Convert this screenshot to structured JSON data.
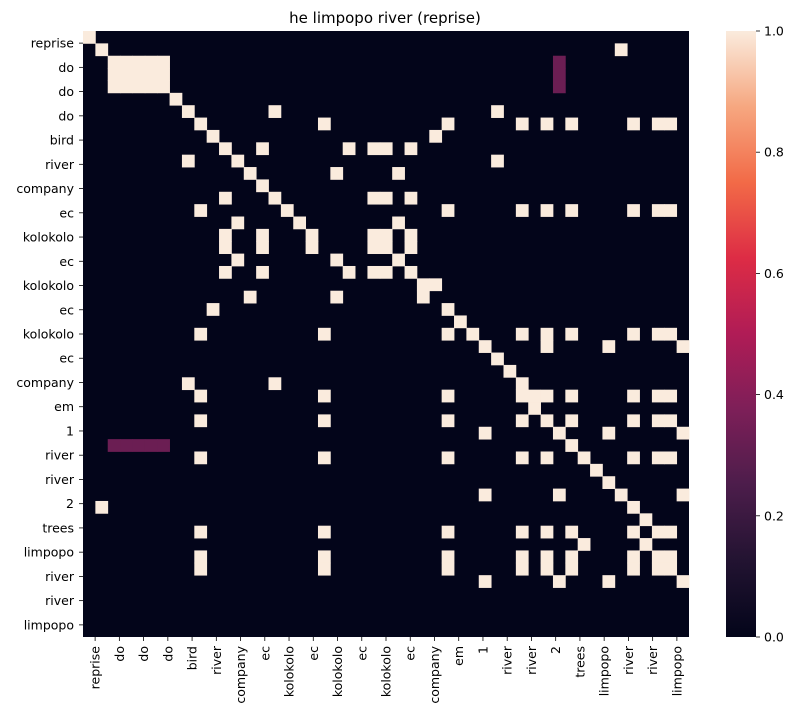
{
  "chart_data": {
    "type": "heatmap",
    "title": "he limpopo river (reprise)",
    "labels": [
      "reprise",
      "do",
      "do",
      "do",
      "bird",
      "river",
      "company",
      "ec",
      "kolokolo",
      "ec",
      "kolokolo",
      "ec",
      "kolokolo",
      "ec",
      "company",
      "em",
      "1",
      "river",
      "river",
      "2",
      "trees",
      "limpopo",
      "river",
      "river",
      "limpopo"
    ],
    "tick_labels": [
      "reprise",
      "do",
      "do",
      "do",
      "bird",
      "river",
      "company",
      "ec",
      "kolokolo",
      "ec",
      "kolokolo",
      "ec",
      "kolokolo",
      "ec",
      "company",
      "em",
      "1",
      "river",
      "river",
      "2",
      "trees",
      "limpopo",
      "river",
      "river",
      "limpopo"
    ],
    "zlim": [
      0,
      1
    ],
    "colorbar_ticks": [
      "0.0",
      "0.2",
      "0.4",
      "0.6",
      "0.8",
      "1.0"
    ],
    "colorbar_tick_values": [
      0,
      0.2,
      0.4,
      0.6,
      0.8,
      1.0
    ],
    "n_cells": 49,
    "cells": [
      [
        0,
        0,
        1
      ],
      [
        1,
        1,
        1
      ],
      [
        1,
        43,
        1
      ],
      [
        2,
        2,
        1
      ],
      [
        2,
        3,
        1
      ],
      [
        2,
        4,
        1
      ],
      [
        2,
        5,
        1
      ],
      [
        2,
        6,
        1
      ],
      [
        2,
        38,
        0.33
      ],
      [
        3,
        2,
        1
      ],
      [
        3,
        3,
        1
      ],
      [
        3,
        4,
        1
      ],
      [
        3,
        5,
        1
      ],
      [
        3,
        6,
        1
      ],
      [
        3,
        38,
        0.33
      ],
      [
        4,
        2,
        1
      ],
      [
        4,
        3,
        1
      ],
      [
        4,
        4,
        1
      ],
      [
        4,
        5,
        1
      ],
      [
        4,
        6,
        1
      ],
      [
        4,
        38,
        0.33
      ],
      [
        5,
        7,
        1
      ],
      [
        6,
        8,
        1
      ],
      [
        6,
        15,
        1
      ],
      [
        6,
        33,
        1
      ],
      [
        7,
        9,
        1
      ],
      [
        7,
        19,
        1
      ],
      [
        7,
        29,
        1
      ],
      [
        7,
        35,
        1
      ],
      [
        7,
        37,
        1
      ],
      [
        7,
        39,
        1
      ],
      [
        7,
        44,
        1
      ],
      [
        7,
        46,
        1
      ],
      [
        7,
        47,
        1
      ],
      [
        8,
        10,
        1
      ],
      [
        8,
        28,
        1
      ],
      [
        9,
        11,
        1
      ],
      [
        9,
        14,
        1
      ],
      [
        9,
        21,
        1
      ],
      [
        9,
        23,
        1
      ],
      [
        9,
        24,
        1
      ],
      [
        9,
        26,
        1
      ],
      [
        10,
        8,
        1
      ],
      [
        10,
        12,
        1
      ],
      [
        10,
        33,
        1
      ],
      [
        11,
        13,
        1
      ],
      [
        11,
        20,
        1
      ],
      [
        11,
        25,
        1
      ],
      [
        12,
        14,
        1
      ],
      [
        13,
        11,
        1
      ],
      [
        13,
        15,
        1
      ],
      [
        13,
        23,
        1
      ],
      [
        13,
        24,
        1
      ],
      [
        13,
        26,
        1
      ],
      [
        14,
        9,
        1
      ],
      [
        14,
        16,
        1
      ],
      [
        14,
        29,
        1
      ],
      [
        14,
        35,
        1
      ],
      [
        14,
        37,
        1
      ],
      [
        14,
        39,
        1
      ],
      [
        14,
        44,
        1
      ],
      [
        14,
        46,
        1
      ],
      [
        14,
        47,
        1
      ],
      [
        15,
        12,
        1
      ],
      [
        15,
        17,
        1
      ],
      [
        15,
        25,
        1
      ],
      [
        16,
        11,
        1
      ],
      [
        16,
        14,
        1
      ],
      [
        16,
        18,
        1
      ],
      [
        16,
        23,
        1
      ],
      [
        16,
        24,
        1
      ],
      [
        16,
        26,
        1
      ],
      [
        17,
        11,
        1
      ],
      [
        17,
        14,
        1
      ],
      [
        17,
        18,
        1
      ],
      [
        17,
        23,
        1
      ],
      [
        17,
        24,
        1
      ],
      [
        17,
        26,
        1
      ],
      [
        18,
        12,
        1
      ],
      [
        18,
        20,
        1
      ],
      [
        18,
        25,
        1
      ],
      [
        19,
        11,
        1
      ],
      [
        19,
        14,
        1
      ],
      [
        19,
        21,
        1
      ],
      [
        19,
        23,
        1
      ],
      [
        19,
        24,
        1
      ],
      [
        19,
        26,
        1
      ],
      [
        20,
        27,
        1
      ],
      [
        20,
        28,
        1
      ],
      [
        21,
        13,
        1
      ],
      [
        21,
        20,
        1
      ],
      [
        21,
        27,
        1
      ],
      [
        22,
        10,
        1
      ],
      [
        22,
        29,
        1
      ],
      [
        23,
        30,
        1
      ],
      [
        24,
        9,
        1
      ],
      [
        24,
        19,
        1
      ],
      [
        24,
        29,
        1
      ],
      [
        24,
        31,
        1
      ],
      [
        24,
        35,
        1
      ],
      [
        24,
        37,
        1
      ],
      [
        24,
        39,
        1
      ],
      [
        24,
        44,
        1
      ],
      [
        24,
        46,
        1
      ],
      [
        24,
        47,
        1
      ],
      [
        25,
        32,
        1
      ],
      [
        25,
        37,
        1
      ],
      [
        25,
        42,
        1
      ],
      [
        25,
        48,
        1
      ],
      [
        26,
        33,
        1
      ],
      [
        27,
        34,
        1
      ],
      [
        28,
        8,
        1
      ],
      [
        28,
        15,
        1
      ],
      [
        28,
        35,
        1
      ],
      [
        29,
        9,
        1
      ],
      [
        29,
        19,
        1
      ],
      [
        29,
        29,
        1
      ],
      [
        29,
        35,
        1
      ],
      [
        29,
        36,
        1
      ],
      [
        29,
        37,
        1
      ],
      [
        29,
        39,
        1
      ],
      [
        29,
        44,
        1
      ],
      [
        29,
        46,
        1
      ],
      [
        29,
        47,
        1
      ],
      [
        30,
        36,
        1
      ],
      [
        31,
        9,
        1
      ],
      [
        31,
        19,
        1
      ],
      [
        31,
        29,
        1
      ],
      [
        31,
        35,
        1
      ],
      [
        31,
        37,
        1
      ],
      [
        31,
        39,
        1
      ],
      [
        31,
        44,
        1
      ],
      [
        31,
        46,
        1
      ],
      [
        31,
        47,
        1
      ],
      [
        32,
        32,
        1
      ],
      [
        32,
        38,
        1
      ],
      [
        32,
        42,
        1
      ],
      [
        32,
        48,
        1
      ],
      [
        33,
        2,
        0.33
      ],
      [
        33,
        3,
        0.33
      ],
      [
        33,
        4,
        0.33
      ],
      [
        33,
        5,
        0.33
      ],
      [
        33,
        6,
        0.33
      ],
      [
        33,
        39,
        1
      ],
      [
        34,
        9,
        1
      ],
      [
        34,
        19,
        1
      ],
      [
        34,
        29,
        1
      ],
      [
        34,
        35,
        1
      ],
      [
        34,
        37,
        1
      ],
      [
        34,
        40,
        1
      ],
      [
        34,
        44,
        1
      ],
      [
        34,
        46,
        1
      ],
      [
        34,
        47,
        1
      ],
      [
        35,
        41,
        1
      ],
      [
        36,
        42,
        1
      ],
      [
        37,
        32,
        1
      ],
      [
        37,
        38,
        1
      ],
      [
        37,
        43,
        1
      ],
      [
        37,
        48,
        1
      ],
      [
        38,
        1,
        1
      ],
      [
        38,
        44,
        1
      ],
      [
        39,
        45,
        1
      ],
      [
        40,
        9,
        1
      ],
      [
        40,
        19,
        1
      ],
      [
        40,
        29,
        1
      ],
      [
        40,
        35,
        1
      ],
      [
        40,
        37,
        1
      ],
      [
        40,
        39,
        1
      ],
      [
        40,
        44,
        1
      ],
      [
        40,
        46,
        1
      ],
      [
        40,
        47,
        1
      ],
      [
        41,
        40,
        1
      ],
      [
        41,
        45,
        1
      ],
      [
        42,
        9,
        1
      ],
      [
        42,
        19,
        1
      ],
      [
        42,
        29,
        1
      ],
      [
        42,
        35,
        1
      ],
      [
        42,
        37,
        1
      ],
      [
        42,
        39,
        1
      ],
      [
        42,
        44,
        1
      ],
      [
        42,
        46,
        1
      ],
      [
        42,
        47,
        1
      ],
      [
        43,
        9,
        1
      ],
      [
        43,
        19,
        1
      ],
      [
        43,
        29,
        1
      ],
      [
        43,
        35,
        1
      ],
      [
        43,
        37,
        1
      ],
      [
        43,
        39,
        1
      ],
      [
        43,
        44,
        1
      ],
      [
        43,
        46,
        1
      ],
      [
        43,
        47,
        1
      ],
      [
        44,
        32,
        1
      ],
      [
        44,
        38,
        1
      ],
      [
        44,
        42,
        1
      ],
      [
        44,
        48,
        1
      ]
    ]
  }
}
